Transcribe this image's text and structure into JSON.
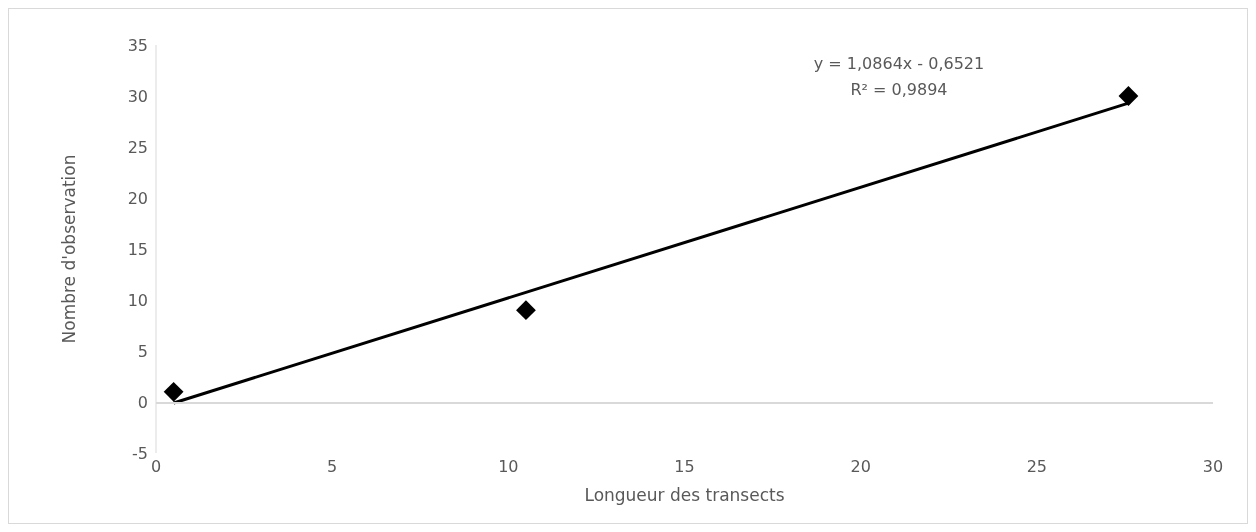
{
  "chart_data": {
    "type": "scatter",
    "xlabel": "Longueur des transects",
    "ylabel": "Nombre d'observation",
    "annotations": [
      "y = 1,0864x - 0,6521",
      "R² = 0,9894"
    ],
    "xlim": [
      0,
      30
    ],
    "xticks": [
      0,
      5,
      10,
      15,
      20,
      25,
      30
    ],
    "ylim": [
      -5,
      35
    ],
    "yticks": [
      -5,
      0,
      5,
      10,
      15,
      20,
      25,
      30,
      35
    ],
    "grid": false,
    "legend": false,
    "marker": "diamond",
    "series": [
      {
        "color": "#000000",
        "x": [
          0.5,
          10.5,
          27.6
        ],
        "values": [
          1,
          9,
          30
        ]
      },
      {
        "type": "line",
        "color": "#000000",
        "line_style": "solid",
        "marker": "none",
        "x": [
          0.5,
          27.6
        ],
        "values": [
          -0.1,
          29.3
        ]
      }
    ]
  }
}
